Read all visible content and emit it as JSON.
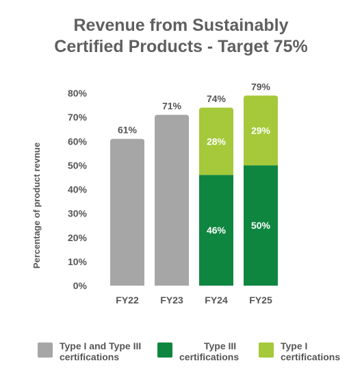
{
  "chart_data": {
    "type": "bar",
    "title_lines": [
      "Revenue from Sustainably",
      "Certified Products - Target 75%"
    ],
    "xlabel": "",
    "ylabel": "Percentage of product revnue",
    "categories": [
      "FY22",
      "FY23",
      "FY24",
      "FY25"
    ],
    "ylim": [
      0,
      80
    ],
    "yticks": [
      0,
      10,
      20,
      30,
      40,
      50,
      60,
      70,
      80
    ],
    "ytick_labels": [
      "0%",
      "10%",
      "20%",
      "30%",
      "40%",
      "50%",
      "60%",
      "70%",
      "80%"
    ],
    "stacked": true,
    "series": [
      {
        "name": "Type I and Type III certifications",
        "values": [
          61,
          71,
          null,
          null
        ],
        "labels": [
          "",
          "",
          "",
          ""
        ],
        "color": "#a6a6a6"
      },
      {
        "name": "Type III certifications",
        "values": [
          null,
          null,
          46,
          50
        ],
        "labels": [
          "",
          "",
          "46%",
          "50%"
        ],
        "color": "#0f8640"
      },
      {
        "name": "Type I certifications",
        "values": [
          null,
          null,
          28,
          29
        ],
        "labels": [
          "",
          "",
          "28%",
          "29%"
        ],
        "color": "#a5c93a"
      }
    ],
    "totals": [
      61,
      71,
      74,
      79
    ],
    "total_labels": [
      "61%",
      "71%",
      "74%",
      "79%"
    ],
    "legend": {
      "placement": "bottom",
      "items": [
        {
          "lines": [
            "Type I and Type III",
            "certifications"
          ],
          "color": "#a6a6a6"
        },
        {
          "lines": [
            "Type III",
            "certifications"
          ],
          "color": "#0f8640"
        },
        {
          "lines": [
            "Type I",
            "certifications"
          ],
          "color": "#a5c93a"
        }
      ]
    },
    "grid": false
  }
}
